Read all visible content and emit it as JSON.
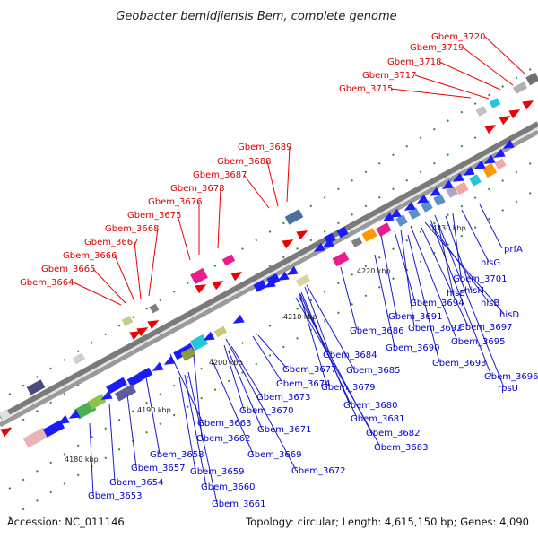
{
  "title": "Geobacter bemidjiensis Bem, complete genome",
  "footer": {
    "accession": "Accession: NC_011146",
    "summary": "Topology: circular; Length: 4,615,150 bp; Genes: 4,090"
  },
  "colors": {
    "upper_label": "#dd0000",
    "lower_label": "#0000cc",
    "backbone": "#888888"
  },
  "kbp_ticks": [
    "4180 kbp",
    "4190 kbp",
    "4200 kbp",
    "4210 kbp",
    "4220 kbp",
    "4230 kbp"
  ],
  "upper_labels": [
    "Gbem_3720",
    "Gbem_3719",
    "Gbem_3718",
    "Gbem_3717",
    "Gbem_3715",
    "Gbem_3689",
    "Gbem_3688",
    "Gbem_3687",
    "Gbem_3678",
    "Gbem_3676",
    "Gbem_3675",
    "Gbem_3668",
    "Gbem_3667",
    "Gbem_3666",
    "Gbem_3665",
    "Gbem_3664"
  ],
  "lower_labels": [
    "prfA",
    "hisG",
    "Gbem_3701",
    "hisH",
    "hisE",
    "hisB",
    "Gbem_3694",
    "hisD",
    "Gbem_3697",
    "Gbem_3691",
    "Gbem_3692",
    "Gbem_3695",
    "Gbem_3686",
    "Gbem_3690",
    "Gbem_3693",
    "Gbem_3696",
    "rpsU",
    "Gbem_3684",
    "Gbem_3685",
    "Gbem_3677",
    "Gbem_3679",
    "Gbem_3674",
    "Gbem_3673",
    "Gbem_3680",
    "Gbem_3681",
    "Gbem_3670",
    "Gbem_3682",
    "Gbem_3683",
    "Gbem_3663",
    "Gbem_3671",
    "Gbem_3662",
    "Gbem_3669",
    "Gbem_3658",
    "Gbem_3657",
    "Gbem_3659",
    "Gbem_3672",
    "Gbem_3654",
    "Gbem_3660",
    "Gbem_3653",
    "Gbem_3661"
  ]
}
